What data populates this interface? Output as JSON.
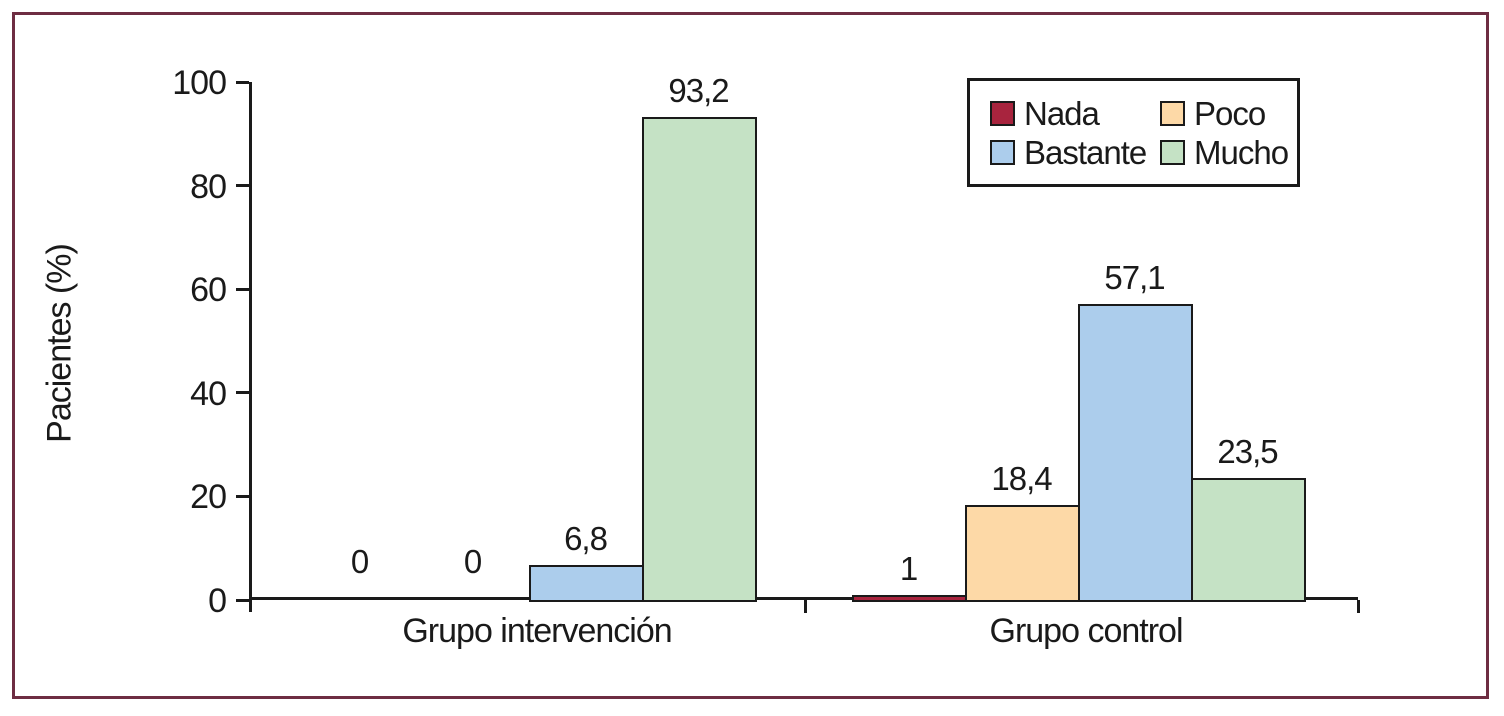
{
  "figure": {
    "frame_color": "#6e2d42",
    "background_color": "#ffffff",
    "axis_color": "#1a1a1a"
  },
  "chart_data": {
    "type": "bar",
    "title": "",
    "xlabel": "",
    "ylabel": "Pacientes (%)",
    "ylim": [
      0,
      100
    ],
    "yticks": [
      "0",
      "20",
      "40",
      "60",
      "80",
      "100"
    ],
    "grid": false,
    "legend_position": "top-right",
    "categories": [
      "Grupo intervención",
      "Grupo control"
    ],
    "series": [
      {
        "name": "Nada",
        "color": "#a8243e",
        "values": [
          0,
          1
        ],
        "value_labels": [
          "0",
          "1"
        ]
      },
      {
        "name": "Poco",
        "color": "#fdd9a7",
        "values": [
          0,
          18.4
        ],
        "value_labels": [
          "0",
          "18,4"
        ]
      },
      {
        "name": "Bastante",
        "color": "#accdec",
        "values": [
          6.8,
          57.1
        ],
        "value_labels": [
          "6,8",
          "57,1"
        ]
      },
      {
        "name": "Mucho",
        "color": "#c5e2c5",
        "values": [
          93.2,
          23.5
        ],
        "value_labels": [
          "93,2",
          "23,5"
        ]
      }
    ]
  }
}
